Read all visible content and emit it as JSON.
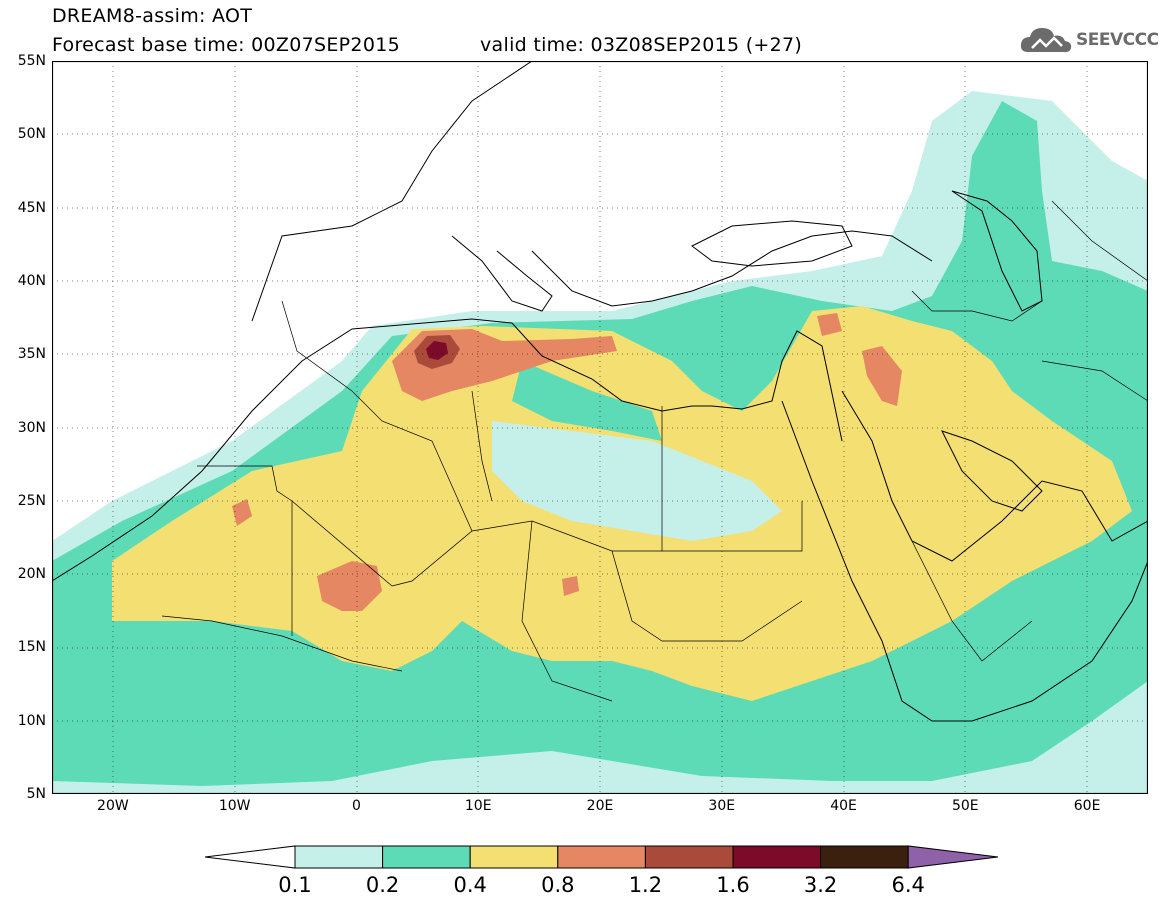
{
  "header": {
    "title_line1": "DREAM8-assim: AOT",
    "title_line2": "Forecast base time: 00Z07SEP2015",
    "valid_time": "valid time: 03Z08SEP2015 (+27)"
  },
  "logo": {
    "text": "SEEVCCC",
    "icon": "cloud-icon"
  },
  "map": {
    "projection": "lat-lon",
    "lon_range": [
      -25,
      65
    ],
    "lat_range": [
      5,
      55
    ],
    "lat_labels": [
      "55N",
      "50N",
      "45N",
      "40N",
      "35N",
      "30N",
      "25N",
      "20N",
      "15N",
      "10N",
      "5N"
    ],
    "lon_labels": [
      "20W",
      "10W",
      "0",
      "10E",
      "20E",
      "30E",
      "40E",
      "50E",
      "60E"
    ]
  },
  "colorbar": {
    "labels": [
      "0.1",
      "0.2",
      "0.4",
      "0.8",
      "1.2",
      "1.6",
      "3.2",
      "6.4"
    ],
    "colors": [
      "#ffffff",
      "#c5f0ea",
      "#5ddbb7",
      "#f4df72",
      "#e48762",
      "#aa4a3b",
      "#7c0a29",
      "#3b1f0f",
      "#8e61a8"
    ]
  }
}
